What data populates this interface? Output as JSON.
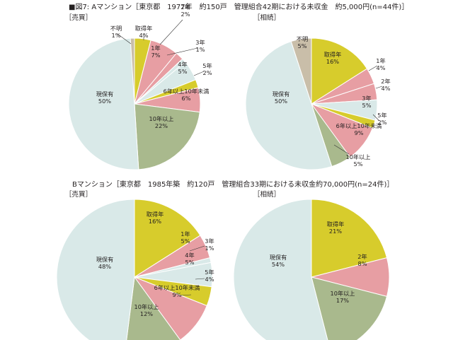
{
  "figure_title": "■図7: Aマンション［東京都　1977年　約150戸　管理組合42期における未収金　約5,000円(n=44件)］",
  "section_b_title": "Bマンション［東京都　1985年築　約120戸　管理組合33期における未収金約70,000円(n=24件)］",
  "colors": {
    "取得年": "#d7cc2c",
    "1年": "#e79ea3",
    "2年": "#e79ea3",
    "3年": "#d9e9e8",
    "4年": "#d9e9e8",
    "5年": "#d7cc2c",
    "6年以上10年未満": "#e79ea3",
    "10年以上": "#a9b98d",
    "現保有": "#d9e9e8",
    "不明": "#c9bea9",
    "stroke": "#ffffff",
    "leader": "#333333"
  },
  "chart_data": [
    {
      "type": "pie",
      "title": "［売買］",
      "slices": [
        {
          "label": "不明",
          "pct": "1%",
          "value": 1
        },
        {
          "label": "取得年",
          "pct": "4%",
          "value": 4
        },
        {
          "label": "1年",
          "pct": "7%",
          "value": 7
        },
        {
          "label": "2年",
          "pct": "2%",
          "value": 2
        },
        {
          "label": "3年",
          "pct": "1%",
          "value": 1
        },
        {
          "label": "4年",
          "pct": "5%",
          "value": 5
        },
        {
          "label": "5年",
          "pct": "2%",
          "value": 2
        },
        {
          "label": "6年以上10年未満",
          "pct": "6%",
          "value": 6
        },
        {
          "label": "10年以上",
          "pct": "22%",
          "value": 22
        },
        {
          "label": "現保有",
          "pct": "50%",
          "value": 50
        }
      ]
    },
    {
      "type": "pie",
      "title": "［相続］",
      "slices": [
        {
          "label": "不明",
          "pct": "5%",
          "value": 5
        },
        {
          "label": "取得年",
          "pct": "16%",
          "value": 16
        },
        {
          "label": "1年",
          "pct": "4%",
          "value": 4
        },
        {
          "label": "2年",
          "pct": "4%",
          "value": 4
        },
        {
          "label": "3年",
          "pct": "5%",
          "value": 5
        },
        {
          "label": "5年",
          "pct": "2%",
          "value": 2
        },
        {
          "label": "6年以上10年未満",
          "pct": "9%",
          "value": 9
        },
        {
          "label": "10年以上",
          "pct": "5%",
          "value": 5
        },
        {
          "label": "現保有",
          "pct": "50%",
          "value": 50
        }
      ]
    },
    {
      "type": "pie",
      "title": "［売買］",
      "slices": [
        {
          "label": "取得年",
          "pct": "16%",
          "value": 16
        },
        {
          "label": "1年",
          "pct": "5%",
          "value": 5
        },
        {
          "label": "3年",
          "pct": "1%",
          "value": 1
        },
        {
          "label": "4年",
          "pct": "5%",
          "value": 5
        },
        {
          "label": "5年",
          "pct": "4%",
          "value": 4
        },
        {
          "label": "6年以上10年未満",
          "pct": "9%",
          "value": 9
        },
        {
          "label": "10年以上",
          "pct": "12%",
          "value": 12
        },
        {
          "label": "現保有",
          "pct": "48%",
          "value": 48
        }
      ]
    },
    {
      "type": "pie",
      "title": "［相続］",
      "slices": [
        {
          "label": "取得年",
          "pct": "21%",
          "value": 21
        },
        {
          "label": "2年",
          "pct": "8%",
          "value": 8
        },
        {
          "label": "10年以上",
          "pct": "17%",
          "value": 17
        },
        {
          "label": "現保有",
          "pct": "54%",
          "value": 54
        }
      ]
    }
  ]
}
